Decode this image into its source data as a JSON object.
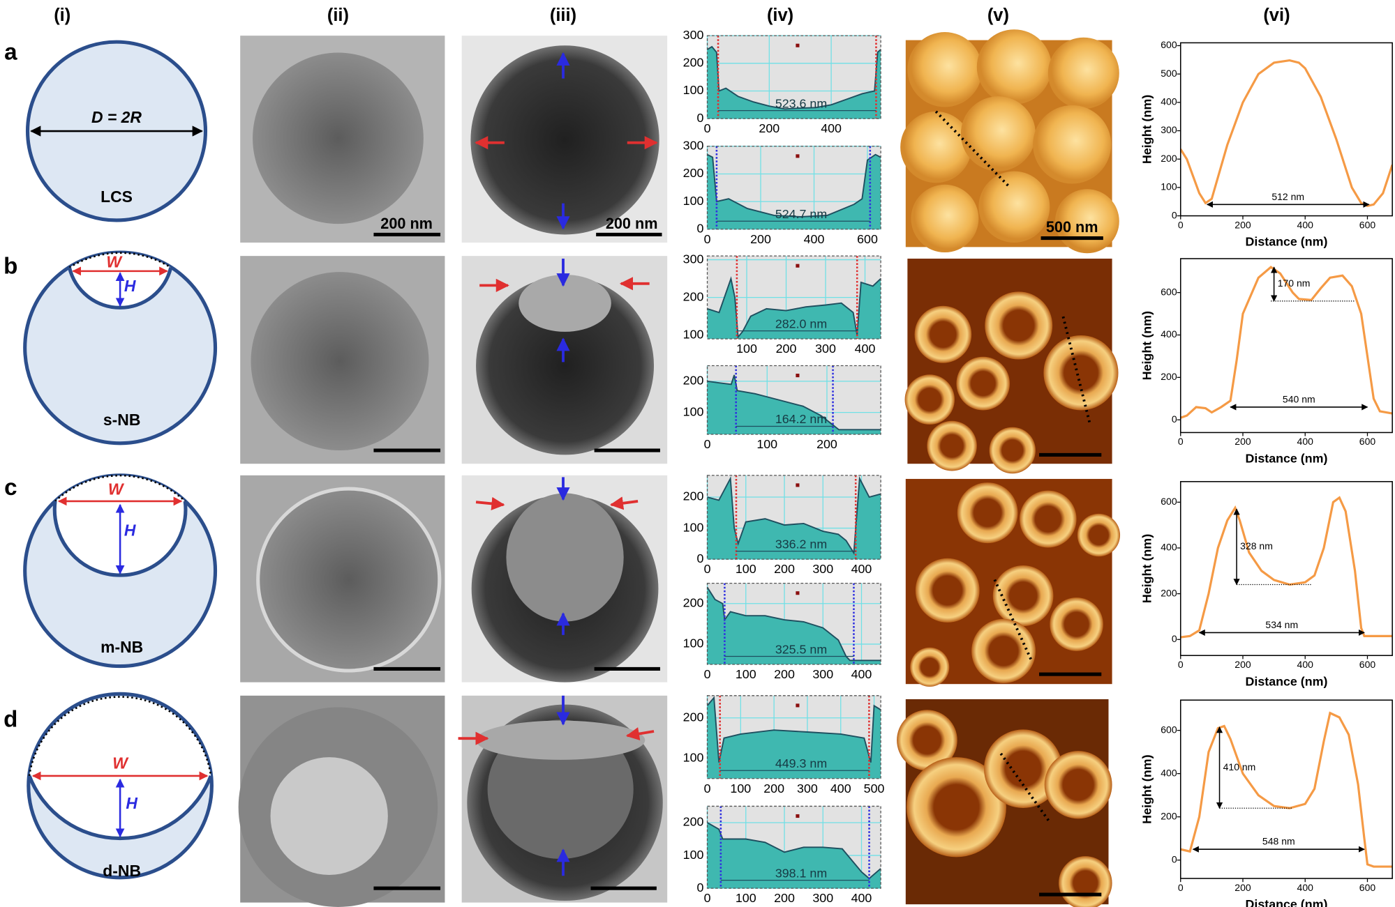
{
  "column_labels": [
    "(i)",
    "(ii)",
    "(iii)",
    "(iv)",
    "(v)",
    "(vi)"
  ],
  "row_labels": [
    "a",
    "b",
    "c",
    "d"
  ],
  "schematics": [
    {
      "dimension": "D = 2R",
      "name": "LCS"
    },
    {
      "width": "W",
      "height": "H",
      "name": "s-NB"
    },
    {
      "width": "W",
      "height": "H",
      "name": "m-NB"
    },
    {
      "width": "W",
      "height": "H",
      "name": "d-NB"
    }
  ],
  "scale_bars": [
    "200 nm",
    "200 nm",
    "500 nm"
  ],
  "chart_data": [
    {
      "type": "area",
      "xlim": [
        0,
        560
      ],
      "ylim": [
        0,
        300
      ],
      "xticks": [
        0,
        200,
        400
      ],
      "yticks": [
        0,
        100,
        200,
        300
      ],
      "grid": true,
      "x": [
        0,
        15,
        30,
        38,
        60,
        100,
        150,
        200,
        250,
        300,
        350,
        400,
        450,
        500,
        540,
        550,
        560
      ],
      "values": [
        250,
        260,
        240,
        100,
        110,
        80,
        60,
        45,
        35,
        38,
        40,
        50,
        70,
        90,
        100,
        240,
        250
      ],
      "color": "#1f4f5f",
      "area_color": "#3fb8b0",
      "background": "#e2e2e2",
      "cursors": [
        35,
        545
      ],
      "cursor_color": "#e03030",
      "annotation": "523.6 nm"
    },
    {
      "type": "area",
      "xlim": [
        0,
        650
      ],
      "ylim": [
        0,
        300
      ],
      "xticks": [
        0,
        200,
        400,
        600
      ],
      "yticks": [
        0,
        100,
        200,
        300
      ],
      "grid": true,
      "x": [
        0,
        20,
        35,
        80,
        150,
        250,
        350,
        450,
        500,
        550,
        580,
        600,
        630,
        650
      ],
      "values": [
        270,
        260,
        100,
        110,
        75,
        50,
        45,
        50,
        70,
        90,
        110,
        250,
        270,
        260
      ],
      "color": "#1f4f5f",
      "area_color": "#3fb8b0",
      "background": "#e2e2e2",
      "cursors": [
        35,
        610
      ],
      "cursor_color": "#3030e0",
      "annotation": "524.7 nm"
    },
    {
      "type": "area",
      "xlim": [
        0,
        440
      ],
      "ylim": [
        90,
        310
      ],
      "xticks": [
        100,
        200,
        300,
        400
      ],
      "yticks": [
        100,
        200,
        300
      ],
      "grid": true,
      "x": [
        0,
        30,
        60,
        70,
        78,
        90,
        110,
        150,
        200,
        250,
        300,
        340,
        370,
        380,
        390,
        420,
        440
      ],
      "values": [
        170,
        160,
        250,
        200,
        95,
        110,
        150,
        170,
        165,
        175,
        180,
        185,
        160,
        100,
        240,
        230,
        250
      ],
      "color": "#1f4f5f",
      "area_color": "#3fb8b0",
      "background": "#e2e2e2",
      "cursors": [
        75,
        380
      ],
      "cursor_color": "#e03030",
      "annotation": "282.0 nm"
    },
    {
      "type": "area",
      "xlim": [
        0,
        290
      ],
      "ylim": [
        30,
        250
      ],
      "xticks": [
        0,
        100,
        200
      ],
      "yticks": [
        100,
        200
      ],
      "grid": true,
      "x": [
        0,
        20,
        40,
        45,
        50,
        80,
        120,
        160,
        190,
        210,
        220,
        250,
        290
      ],
      "values": [
        200,
        195,
        190,
        220,
        170,
        160,
        140,
        120,
        90,
        60,
        45,
        45,
        45
      ],
      "color": "#1f4f5f",
      "area_color": "#3fb8b0",
      "background": "#e2e2e2",
      "cursors": [
        48,
        210
      ],
      "cursor_color": "#3030e0",
      "annotation": "164.2 nm"
    },
    {
      "type": "area",
      "xlim": [
        0,
        450
      ],
      "ylim": [
        0,
        270
      ],
      "xticks": [
        0,
        100,
        200,
        300,
        400
      ],
      "yticks": [
        0,
        100,
        200
      ],
      "grid": true,
      "x": [
        0,
        30,
        60,
        70,
        80,
        100,
        150,
        200,
        250,
        300,
        340,
        360,
        380,
        395,
        420,
        450
      ],
      "values": [
        200,
        190,
        260,
        100,
        50,
        120,
        130,
        110,
        115,
        90,
        80,
        60,
        20,
        260,
        200,
        210
      ],
      "color": "#1f4f5f",
      "area_color": "#3fb8b0",
      "background": "#e2e2e2",
      "cursors": [
        75,
        385
      ],
      "cursor_color": "#e03030",
      "annotation": "336.2 nm"
    },
    {
      "type": "area",
      "xlim": [
        0,
        450
      ],
      "ylim": [
        50,
        250
      ],
      "xticks": [
        0,
        100,
        200,
        300,
        400
      ],
      "yticks": [
        100,
        200
      ],
      "grid": true,
      "x": [
        0,
        20,
        40,
        45,
        60,
        100,
        150,
        200,
        250,
        300,
        340,
        360,
        370,
        400,
        450
      ],
      "values": [
        240,
        210,
        200,
        160,
        180,
        170,
        170,
        160,
        155,
        140,
        110,
        70,
        60,
        60,
        60
      ],
      "color": "#1f4f5f",
      "area_color": "#3fb8b0",
      "background": "#e2e2e2",
      "cursors": [
        45,
        380
      ],
      "cursor_color": "#3030e0",
      "annotation": "325.5 nm"
    },
    {
      "type": "area",
      "xlim": [
        0,
        520
      ],
      "ylim": [
        50,
        255
      ],
      "xticks": [
        0,
        100,
        200,
        300,
        400,
        500
      ],
      "yticks": [
        100,
        200
      ],
      "grid": true,
      "x": [
        0,
        20,
        35,
        50,
        100,
        200,
        300,
        400,
        470,
        490,
        500,
        520
      ],
      "values": [
        230,
        250,
        90,
        150,
        160,
        170,
        165,
        160,
        150,
        90,
        230,
        220
      ],
      "color": "#1f4f5f",
      "area_color": "#3fb8b0",
      "background": "#e2e2e2",
      "cursors": [
        38,
        485
      ],
      "cursor_color": "#e03030",
      "annotation": "449.3 nm"
    },
    {
      "type": "area",
      "xlim": [
        0,
        450
      ],
      "ylim": [
        0,
        250
      ],
      "xticks": [
        0,
        100,
        200,
        300,
        400
      ],
      "yticks": [
        0,
        100,
        200
      ],
      "grid": true,
      "x": [
        0,
        30,
        40,
        100,
        150,
        200,
        250,
        300,
        350,
        400,
        420,
        450
      ],
      "values": [
        200,
        180,
        150,
        150,
        140,
        110,
        125,
        125,
        120,
        50,
        30,
        60
      ],
      "color": "#1f4f5f",
      "area_color": "#3fb8b0",
      "background": "#e2e2e2",
      "cursors": [
        35,
        420
      ],
      "cursor_color": "#3030e0",
      "annotation": "398.1 nm"
    },
    {
      "type": "line",
      "xlabel": "Distance (nm)",
      "ylabel": "Height (nm)",
      "xlim": [
        0,
        680
      ],
      "ylim": [
        0,
        610
      ],
      "xticks": [
        0,
        200,
        400,
        600
      ],
      "yticks": [
        0,
        100,
        200,
        300,
        400,
        500,
        600
      ],
      "x": [
        0,
        20,
        40,
        60,
        80,
        100,
        150,
        200,
        250,
        300,
        350,
        380,
        400,
        450,
        500,
        550,
        580,
        600,
        620,
        650,
        680
      ],
      "values": [
        235,
        200,
        140,
        80,
        45,
        60,
        250,
        400,
        500,
        540,
        548,
        540,
        520,
        420,
        270,
        100,
        45,
        35,
        40,
        80,
        180
      ],
      "color": "#f59a45",
      "annotations": [
        {
          "text": "512 nm",
          "x": [
            85,
            605
          ],
          "y": 40
        }
      ]
    },
    {
      "type": "line",
      "xlabel": "Distance (nm)",
      "ylabel": "Height (nm)",
      "xlim": [
        0,
        680
      ],
      "ylim": [
        -60,
        760
      ],
      "xticks": [
        0,
        200,
        400,
        600
      ],
      "yticks": [
        0,
        200,
        400,
        600
      ],
      "x": [
        0,
        20,
        50,
        80,
        100,
        130,
        160,
        180,
        200,
        250,
        290,
        320,
        360,
        380,
        420,
        450,
        480,
        520,
        550,
        580,
        600,
        620,
        640,
        680
      ],
      "values": [
        10,
        20,
        60,
        55,
        35,
        60,
        90,
        280,
        500,
        670,
        720,
        690,
        600,
        570,
        565,
        620,
        670,
        680,
        630,
        500,
        300,
        100,
        40,
        30
      ],
      "color": "#f59a45",
      "annotations": [
        {
          "text": "170 nm",
          "x": 300,
          "y": [
            720,
            560
          ],
          "ref_x": [
            290,
            560
          ]
        },
        {
          "text": "540 nm",
          "x": [
            160,
            600
          ],
          "y": 60
        }
      ]
    },
    {
      "type": "line",
      "xlabel": "Distance (nm)",
      "ylabel": "Height (nm)",
      "xlim": [
        0,
        680
      ],
      "ylim": [
        -70,
        690
      ],
      "xticks": [
        0,
        200,
        400,
        600
      ],
      "yticks": [
        0,
        200,
        400,
        600
      ],
      "x": [
        0,
        30,
        60,
        90,
        120,
        150,
        175,
        190,
        220,
        260,
        300,
        350,
        400,
        430,
        460,
        490,
        510,
        530,
        560,
        580,
        590,
        620,
        680
      ],
      "values": [
        10,
        15,
        40,
        200,
        400,
        520,
        575,
        520,
        380,
        300,
        260,
        240,
        250,
        280,
        400,
        600,
        620,
        560,
        300,
        50,
        15,
        15,
        15
      ],
      "color": "#f59a45",
      "annotations": [
        {
          "text": "328 nm",
          "x": 180,
          "y": [
            570,
            240
          ],
          "ref_x": [
            180,
            420
          ]
        },
        {
          "text": "534 nm",
          "x": [
            60,
            590
          ],
          "y": 30
        }
      ]
    },
    {
      "type": "line",
      "xlabel": "Distance (nm)",
      "ylabel": "Height (nm)",
      "xlim": [
        0,
        680
      ],
      "ylim": [
        -85,
        740
      ],
      "xticks": [
        0,
        200,
        400,
        600
      ],
      "yticks": [
        0,
        200,
        400,
        600
      ],
      "x": [
        0,
        30,
        60,
        90,
        120,
        140,
        160,
        200,
        250,
        300,
        350,
        400,
        430,
        460,
        480,
        510,
        540,
        570,
        590,
        600,
        620,
        680
      ],
      "values": [
        50,
        40,
        200,
        500,
        610,
        620,
        560,
        400,
        300,
        250,
        240,
        260,
        330,
        550,
        680,
        660,
        580,
        350,
        100,
        -20,
        -30,
        -30
      ],
      "color": "#f59a45",
      "annotations": [
        {
          "text": "410 nm",
          "x": 125,
          "y": [
            615,
            240
          ],
          "ref_x": [
            125,
            360
          ]
        },
        {
          "text": "548 nm",
          "x": [
            40,
            590
          ],
          "y": 50
        }
      ]
    }
  ]
}
